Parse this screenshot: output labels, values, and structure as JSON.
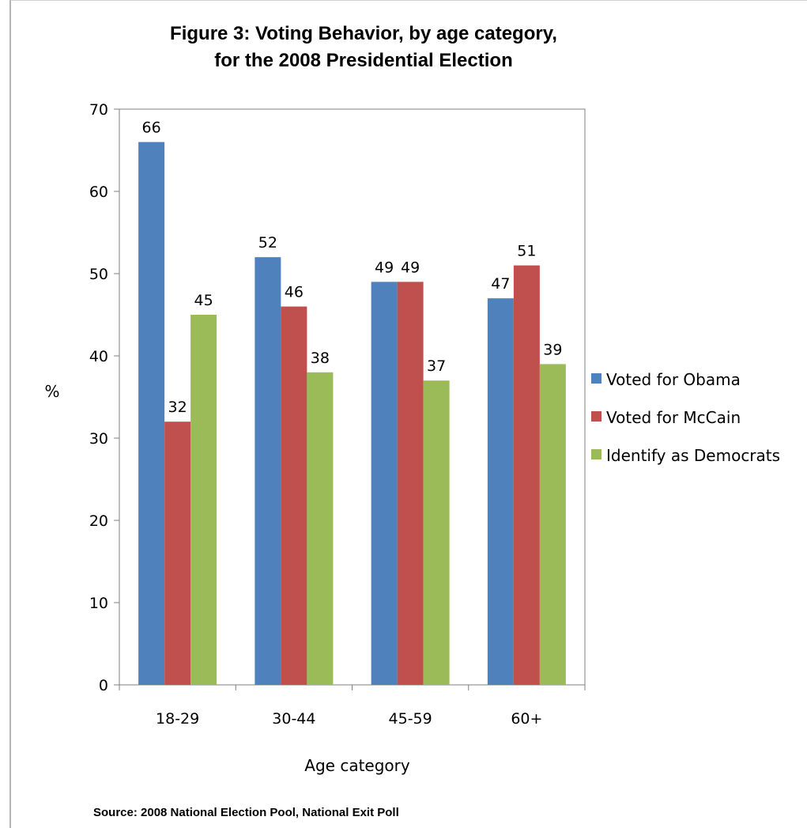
{
  "chart_data": {
    "type": "bar",
    "title_line1": "Figure 3: Voting Behavior, by age category,",
    "title_line2": "for the 2008 Presidential Election",
    "xlabel": "Age category",
    "ylabel": "%",
    "ylim": [
      0,
      70
    ],
    "yticks": [
      0,
      10,
      20,
      30,
      40,
      50,
      60,
      70
    ],
    "categories": [
      "18-29",
      "30-44",
      "45-59",
      "60+"
    ],
    "series": [
      {
        "name": "Voted for Obama",
        "color": "#4f81bd",
        "values": [
          66,
          52,
          49,
          47
        ]
      },
      {
        "name": "Voted for McCain",
        "color": "#c0504d",
        "values": [
          32,
          46,
          49,
          51
        ]
      },
      {
        "name": "Identify as Democrats",
        "color": "#9bbb59",
        "values": [
          45,
          38,
          37,
          39
        ]
      }
    ],
    "grid": false,
    "legend_position": "right"
  },
  "source": "Source:  2008 National Election Pool, National Exit Poll"
}
